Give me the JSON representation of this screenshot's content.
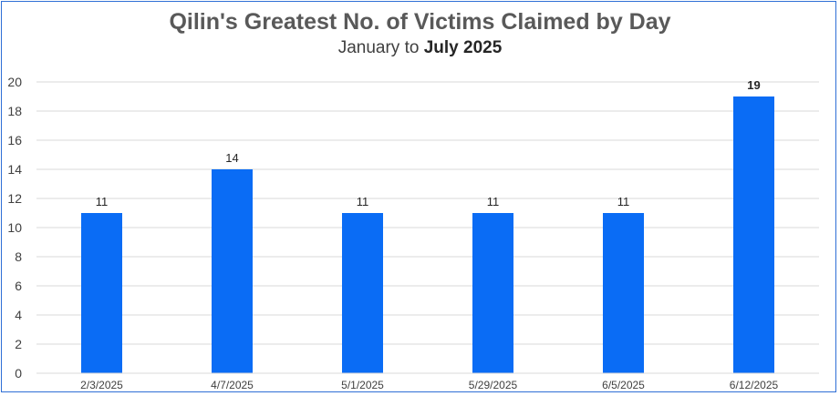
{
  "chart_data": {
    "type": "bar",
    "title": "Qilin's Greatest No. of Victims Claimed by Day",
    "subtitle_prefix": "January to ",
    "subtitle_bold": "July 2025",
    "categories": [
      "2/3/2025",
      "4/7/2025",
      "5/1/2025",
      "5/29/2025",
      "6/5/2025",
      "6/12/2025"
    ],
    "values": [
      11,
      14,
      11,
      11,
      11,
      19
    ],
    "data_labels": [
      "11",
      "14",
      "11",
      "11",
      "11",
      "19"
    ],
    "ylim": [
      0,
      20
    ],
    "yticks": [
      "0",
      "2",
      "4",
      "6",
      "8",
      "10",
      "12",
      "14",
      "16",
      "18",
      "20"
    ],
    "xlabel": "",
    "ylabel": "",
    "grid": true,
    "legend": "none",
    "bar_color": "#0a6cf5",
    "grid_color": "#d9d9d9",
    "border_color": "#2f6fd6"
  }
}
